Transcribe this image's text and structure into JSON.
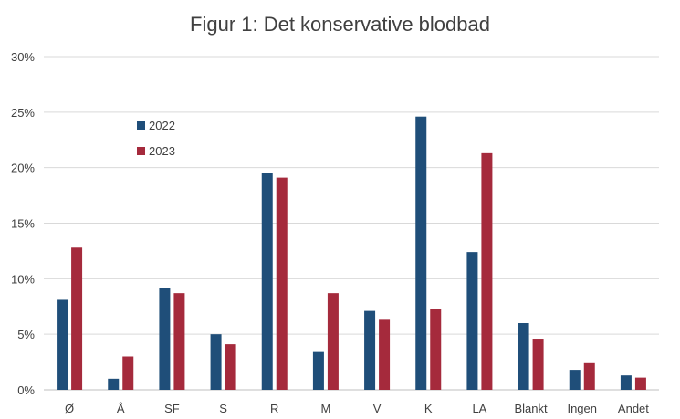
{
  "chart_data": {
    "type": "bar",
    "title": "Figur 1: Det konservative blodbad",
    "xlabel": "",
    "ylabel": "",
    "categories": [
      "Ø",
      "Å",
      "SF",
      "S",
      "R",
      "M",
      "V",
      "K",
      "LA",
      "Blankt",
      "Ingen",
      "Andet"
    ],
    "series": [
      {
        "name": "2022",
        "color": "#1f4e79",
        "values": [
          8.1,
          1.0,
          9.2,
          5.0,
          19.5,
          3.4,
          7.1,
          24.6,
          12.4,
          6.0,
          1.8,
          1.3
        ]
      },
      {
        "name": "2023",
        "color": "#a52a3c",
        "values": [
          12.8,
          3.0,
          8.7,
          4.1,
          19.1,
          8.7,
          6.3,
          7.3,
          21.3,
          4.6,
          2.4,
          1.1
        ]
      }
    ],
    "ylim": [
      0,
      30
    ],
    "yticks": [
      "0%",
      "5%",
      "10%",
      "15%",
      "20%",
      "25%",
      "30%"
    ],
    "grid": true,
    "legend": "top-left"
  }
}
